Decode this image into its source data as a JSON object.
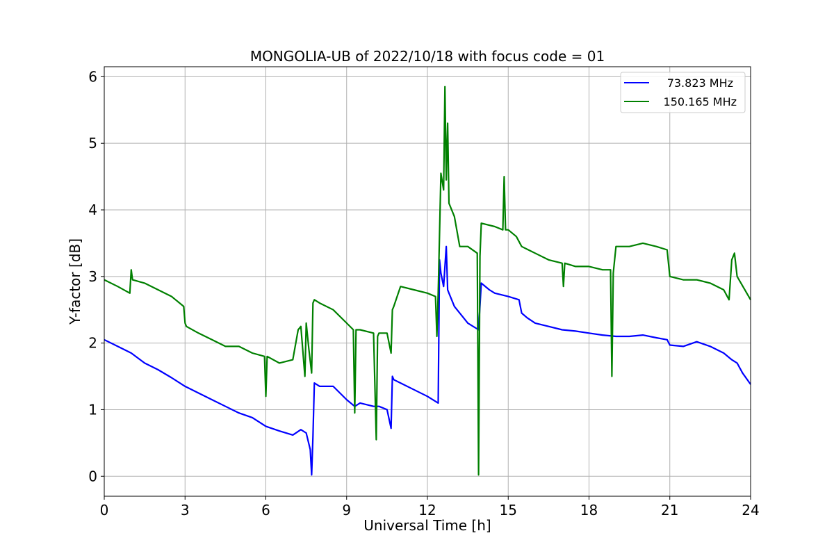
{
  "chart_data": {
    "type": "line",
    "title": "MONGOLIA-UB of 2022/10/18 with focus code = 01",
    "xlabel": "Universal Time [h]",
    "ylabel": "Y-factor [dB]",
    "xlim": [
      0,
      24
    ],
    "ylim": [
      -0.3,
      6.15
    ],
    "xticks": [
      0,
      3,
      6,
      9,
      12,
      15,
      18,
      21,
      24
    ],
    "xtick_labels": [
      "0",
      "3",
      "6",
      "9",
      "12",
      "15",
      "18",
      "21",
      "24"
    ],
    "yticks": [
      0,
      1,
      2,
      3,
      4,
      5,
      6
    ],
    "ytick_labels": [
      "0",
      "1",
      "2",
      "3",
      "4",
      "5",
      "6"
    ],
    "grid": true,
    "legend_position": "top-right",
    "series": [
      {
        "name": "73.823 MHz",
        "color": "#0000ff",
        "x": [
          0,
          0.5,
          1.0,
          1.5,
          2.0,
          2.5,
          3.0,
          3.5,
          4.0,
          4.5,
          5.0,
          5.5,
          6.0,
          6.5,
          7.0,
          7.3,
          7.5,
          7.65,
          7.7,
          7.75,
          7.8,
          8.0,
          8.5,
          9.0,
          9.3,
          9.5,
          10.0,
          10.2,
          10.5,
          10.65,
          10.7,
          10.75,
          11.0,
          11.5,
          12.0,
          12.4,
          12.45,
          12.5,
          12.6,
          12.7,
          12.75,
          12.8,
          13.0,
          13.3,
          13.5,
          13.9,
          14.0,
          14.3,
          14.5,
          15.0,
          15.4,
          15.5,
          15.7,
          16.0,
          16.5,
          17.0,
          17.5,
          18.0,
          18.5,
          19.0,
          19.5,
          20.0,
          20.5,
          20.9,
          21.0,
          21.5,
          22.0,
          22.5,
          23.0,
          23.3,
          23.5,
          23.7,
          24.0
        ],
        "y": [
          2.05,
          1.95,
          1.85,
          1.7,
          1.6,
          1.48,
          1.35,
          1.25,
          1.15,
          1.05,
          0.95,
          0.88,
          0.75,
          0.68,
          0.62,
          0.7,
          0.65,
          0.4,
          0.02,
          0.6,
          1.4,
          1.35,
          1.35,
          1.15,
          1.05,
          1.1,
          1.05,
          1.05,
          1.0,
          0.72,
          1.5,
          1.45,
          1.4,
          1.3,
          1.2,
          1.1,
          3.25,
          3.05,
          2.85,
          3.45,
          2.8,
          2.75,
          2.55,
          2.4,
          2.3,
          2.2,
          2.9,
          2.8,
          2.75,
          2.7,
          2.65,
          2.45,
          2.38,
          2.3,
          2.25,
          2.2,
          2.18,
          2.15,
          2.12,
          2.1,
          2.1,
          2.12,
          2.08,
          2.05,
          1.97,
          1.95,
          2.02,
          1.95,
          1.85,
          1.75,
          1.7,
          1.55,
          1.38
        ]
      },
      {
        "name": "150.165 MHz",
        "color": "#008000",
        "x": [
          0,
          0.5,
          0.95,
          1.0,
          1.05,
          1.5,
          2.0,
          2.5,
          2.95,
          3.0,
          3.05,
          3.5,
          4.0,
          4.5,
          5.0,
          5.5,
          5.95,
          6.0,
          6.05,
          6.5,
          7.0,
          7.2,
          7.3,
          7.45,
          7.5,
          7.6,
          7.7,
          7.75,
          7.8,
          8.0,
          8.5,
          9.0,
          9.25,
          9.3,
          9.35,
          9.5,
          10.0,
          10.1,
          10.15,
          10.2,
          10.5,
          10.65,
          10.7,
          10.75,
          11.0,
          11.5,
          12.0,
          12.3,
          12.35,
          12.4,
          12.5,
          12.6,
          12.65,
          12.7,
          12.75,
          12.8,
          13.0,
          13.2,
          13.5,
          13.85,
          13.9,
          13.95,
          14.0,
          14.5,
          14.8,
          14.85,
          14.9,
          15.0,
          15.3,
          15.5,
          16.0,
          16.5,
          17.0,
          17.05,
          17.1,
          17.5,
          18.0,
          18.5,
          18.8,
          18.85,
          18.9,
          19.0,
          19.5,
          20.0,
          20.5,
          20.9,
          21.0,
          21.5,
          22.0,
          22.5,
          23.0,
          23.2,
          23.3,
          23.4,
          23.5,
          24.0
        ],
        "y": [
          2.95,
          2.85,
          2.75,
          3.1,
          2.95,
          2.9,
          2.8,
          2.7,
          2.55,
          2.3,
          2.25,
          2.15,
          2.05,
          1.95,
          1.95,
          1.85,
          1.8,
          1.2,
          1.8,
          1.7,
          1.75,
          2.2,
          2.25,
          1.5,
          2.3,
          1.9,
          1.55,
          2.6,
          2.65,
          2.6,
          2.5,
          2.3,
          2.2,
          0.95,
          2.2,
          2.2,
          2.15,
          0.55,
          2.1,
          2.15,
          2.15,
          1.85,
          2.5,
          2.55,
          2.85,
          2.8,
          2.75,
          2.7,
          2.1,
          2.75,
          4.55,
          4.3,
          5.85,
          4.45,
          5.3,
          4.1,
          3.9,
          3.45,
          3.45,
          3.35,
          0.02,
          3.3,
          3.8,
          3.75,
          3.7,
          4.5,
          3.7,
          3.7,
          3.6,
          3.45,
          3.35,
          3.25,
          3.2,
          2.85,
          3.2,
          3.15,
          3.15,
          3.1,
          3.1,
          1.5,
          3.05,
          3.45,
          3.45,
          3.5,
          3.45,
          3.4,
          3.0,
          2.95,
          2.95,
          2.9,
          2.8,
          2.65,
          3.25,
          3.35,
          3.0,
          2.65
        ]
      }
    ]
  }
}
